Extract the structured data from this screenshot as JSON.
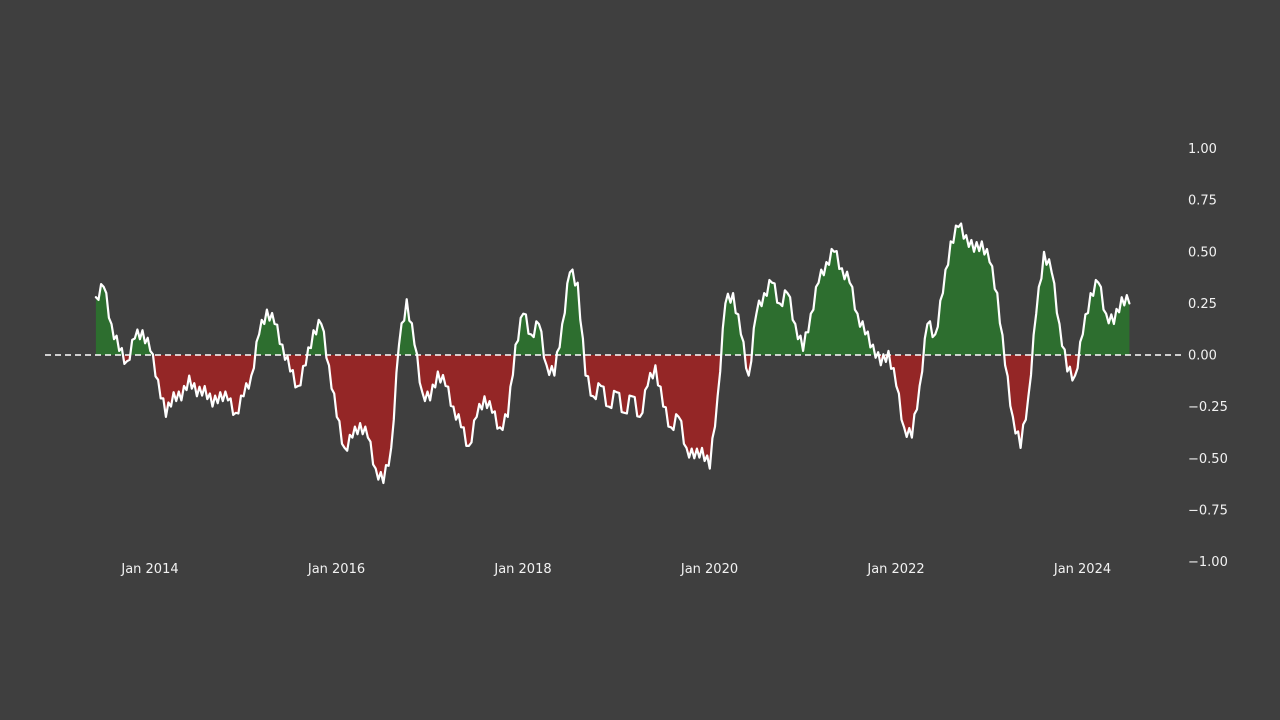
{
  "chart_data": {
    "type": "area",
    "title": "",
    "description": "Oscillating time series (rolling-correlation style) plotted as a white line with green fill above zero and red fill below zero, dashed zero baseline",
    "x_start_year": 2013.42,
    "x_step_years": 0.0833333,
    "noise_amplitude": 0.03,
    "values": [
      0.28,
      0.33,
      0.15,
      0.02,
      -0.03,
      0.08,
      0.12,
      0.02,
      -0.12,
      -0.3,
      -0.18,
      -0.22,
      -0.1,
      -0.2,
      -0.15,
      -0.25,
      -0.18,
      -0.22,
      -0.28,
      -0.2,
      -0.1,
      0.1,
      0.22,
      0.15,
      0.05,
      -0.08,
      -0.15,
      -0.05,
      0.12,
      0.15,
      -0.05,
      -0.3,
      -0.45,
      -0.4,
      -0.33,
      -0.4,
      -0.55,
      -0.62,
      -0.45,
      0.05,
      0.27,
      0.05,
      -0.18,
      -0.22,
      -0.08,
      -0.15,
      -0.25,
      -0.35,
      -0.44,
      -0.3,
      -0.2,
      -0.28,
      -0.35,
      -0.3,
      0.05,
      0.2,
      0.1,
      0.15,
      -0.05,
      -0.1,
      0.15,
      0.4,
      0.35,
      -0.1,
      -0.2,
      -0.15,
      -0.25,
      -0.18,
      -0.28,
      -0.2,
      -0.3,
      -0.15,
      -0.05,
      -0.25,
      -0.35,
      -0.3,
      -0.45,
      -0.5,
      -0.45,
      -0.55,
      -0.2,
      0.25,
      0.3,
      0.1,
      -0.1,
      0.2,
      0.3,
      0.35,
      0.25,
      0.3,
      0.15,
      0.02,
      0.2,
      0.35,
      0.45,
      0.5,
      0.42,
      0.35,
      0.2,
      0.1,
      0.05,
      -0.05,
      0.02,
      -0.15,
      -0.35,
      -0.4,
      -0.15,
      0.15,
      0.1,
      0.3,
      0.55,
      0.62,
      0.58,
      0.5,
      0.55,
      0.45,
      0.3,
      -0.05,
      -0.3,
      -0.45,
      -0.2,
      0.2,
      0.5,
      0.4,
      0.15,
      -0.08,
      -0.1,
      0.1,
      0.3,
      0.35,
      0.2,
      0.15,
      0.28,
      0.25
    ],
    "baseline": 0,
    "ylim": [
      -1.0,
      1.0
    ],
    "grid": false,
    "legend": null,
    "x_ticks": [
      {
        "year": 2014,
        "label": "Jan 2014"
      },
      {
        "year": 2016,
        "label": "Jan 2016"
      },
      {
        "year": 2018,
        "label": "Jan 2018"
      },
      {
        "year": 2020,
        "label": "Jan 2020"
      },
      {
        "year": 2022,
        "label": "Jan 2022"
      },
      {
        "year": 2024,
        "label": "Jan 2024"
      }
    ],
    "y_ticks": [
      {
        "v": 1.0,
        "label": "1.00"
      },
      {
        "v": 0.75,
        "label": "0.75"
      },
      {
        "v": 0.5,
        "label": "0.50"
      },
      {
        "v": 0.25,
        "label": "0.25"
      },
      {
        "v": 0.0,
        "label": "0.00"
      },
      {
        "v": -0.25,
        "label": "−0.25"
      },
      {
        "v": -0.5,
        "label": "−0.50"
      },
      {
        "v": -0.75,
        "label": "−0.75"
      },
      {
        "v": -1.0,
        "label": "−1.00"
      }
    ],
    "colors": {
      "background": "#3f3f3f",
      "positive_fill": "#2d6e2f",
      "negative_fill": "#942626",
      "line": "#ffffff",
      "zero_line": "#ffffff",
      "text": "#f2f2f2"
    }
  }
}
